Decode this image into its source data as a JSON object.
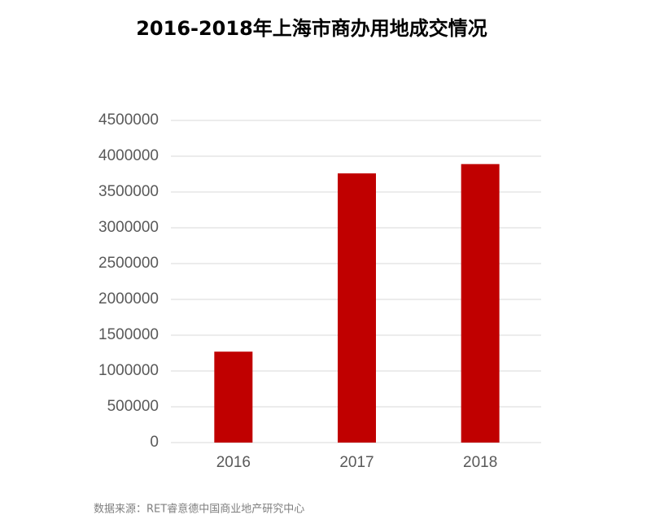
{
  "chart_data": {
    "type": "bar",
    "title": "2016-2018年上海市商办用地成交情况",
    "categories": [
      "2016",
      "2017",
      "2018"
    ],
    "values": [
      1270000,
      3760000,
      3890000
    ],
    "color": "#c00000",
    "ylim": [
      0,
      4500000
    ],
    "yticks": [
      0,
      500000,
      1000000,
      1500000,
      2000000,
      2500000,
      3000000,
      3500000,
      4000000,
      4500000
    ],
    "grid": true,
    "source": "数据来源：RET睿意德中国商业地产研究中心"
  }
}
